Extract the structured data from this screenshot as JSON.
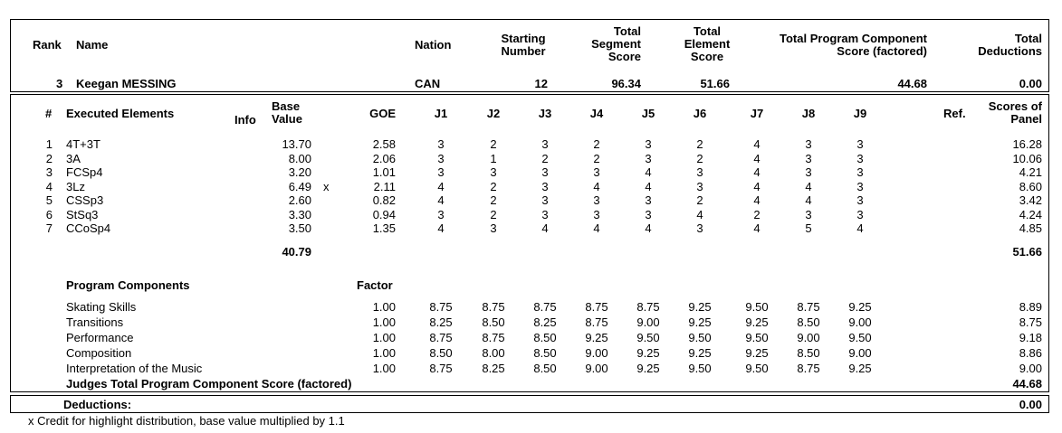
{
  "header": {
    "rank_label": "Rank",
    "name_label": "Name",
    "nation_label": "Nation",
    "starting_number_label": [
      "Starting",
      "Number"
    ],
    "total_segment_label": [
      "Total",
      "Segment",
      "Score"
    ],
    "total_element_label": [
      "Total",
      "Element",
      "Score"
    ],
    "total_pcs_label": [
      "Total Program Component",
      "Score (factored)"
    ],
    "total_deductions_label": [
      "Total",
      "Deductions"
    ]
  },
  "skater": {
    "rank": "3",
    "name": "Keegan MESSING",
    "nation": "CAN",
    "starting_number": "12",
    "total_segment_score": "96.34",
    "total_element_score": "51.66",
    "total_pcs": "44.68",
    "total_deductions": "0.00"
  },
  "elements_header": {
    "num": "#",
    "executed_elements": "Executed Elements",
    "info": "Info",
    "base_value": [
      "Base",
      "Value"
    ],
    "goe": "GOE",
    "judges": [
      "J1",
      "J2",
      "J3",
      "J4",
      "J5",
      "J6",
      "J7",
      "J8",
      "J9"
    ],
    "ref": "Ref.",
    "scores_of_panel": [
      "Scores of",
      "Panel"
    ]
  },
  "elements": [
    {
      "num": "1",
      "name": "4T+3T",
      "info": "",
      "base": "13.70",
      "goe": "2.58",
      "j": [
        "3",
        "2",
        "3",
        "2",
        "3",
        "2",
        "4",
        "3",
        "3"
      ],
      "score": "16.28"
    },
    {
      "num": "2",
      "name": "3A",
      "info": "",
      "base": "8.00",
      "goe": "2.06",
      "j": [
        "3",
        "1",
        "2",
        "2",
        "3",
        "2",
        "4",
        "3",
        "3"
      ],
      "score": "10.06"
    },
    {
      "num": "3",
      "name": "FCSp4",
      "info": "",
      "base": "3.20",
      "goe": "1.01",
      "j": [
        "3",
        "3",
        "3",
        "3",
        "4",
        "3",
        "4",
        "3",
        "3"
      ],
      "score": "4.21"
    },
    {
      "num": "4",
      "name": "3Lz",
      "info": "x",
      "base": "6.49",
      "goe": "2.11",
      "j": [
        "4",
        "2",
        "3",
        "4",
        "4",
        "3",
        "4",
        "4",
        "3"
      ],
      "score": "8.60"
    },
    {
      "num": "5",
      "name": "CSSp3",
      "info": "",
      "base": "2.60",
      "goe": "0.82",
      "j": [
        "4",
        "2",
        "3",
        "3",
        "3",
        "2",
        "4",
        "4",
        "3"
      ],
      "score": "3.42"
    },
    {
      "num": "6",
      "name": "StSq3",
      "info": "",
      "base": "3.30",
      "goe": "0.94",
      "j": [
        "3",
        "2",
        "3",
        "3",
        "3",
        "4",
        "2",
        "3",
        "3"
      ],
      "score": "4.24"
    },
    {
      "num": "7",
      "name": "CCoSp4",
      "info": "",
      "base": "3.50",
      "goe": "1.35",
      "j": [
        "4",
        "3",
        "4",
        "4",
        "4",
        "3",
        "4",
        "5",
        "4"
      ],
      "score": "4.85"
    }
  ],
  "elements_total_base": "40.79",
  "elements_total_score": "51.66",
  "program_components_label": "Program Components",
  "factor_label": "Factor",
  "components": [
    {
      "name": "Skating Skills",
      "factor": "1.00",
      "j": [
        "8.75",
        "8.75",
        "8.75",
        "8.75",
        "8.75",
        "9.25",
        "9.50",
        "8.75",
        "9.25"
      ],
      "score": "8.89"
    },
    {
      "name": "Transitions",
      "factor": "1.00",
      "j": [
        "8.25",
        "8.50",
        "8.25",
        "8.75",
        "9.00",
        "9.25",
        "9.25",
        "8.50",
        "9.00"
      ],
      "score": "8.75"
    },
    {
      "name": "Performance",
      "factor": "1.00",
      "j": [
        "8.75",
        "8.75",
        "8.50",
        "9.25",
        "9.50",
        "9.50",
        "9.50",
        "9.00",
        "9.50"
      ],
      "score": "9.18"
    },
    {
      "name": "Composition",
      "factor": "1.00",
      "j": [
        "8.50",
        "8.00",
        "8.50",
        "9.00",
        "9.25",
        "9.25",
        "9.25",
        "8.50",
        "9.00"
      ],
      "score": "8.86"
    },
    {
      "name": "Interpretation of the Music",
      "factor": "1.00",
      "j": [
        "8.75",
        "8.25",
        "8.50",
        "9.00",
        "9.25",
        "9.50",
        "9.50",
        "8.75",
        "9.25"
      ],
      "score": "9.00"
    }
  ],
  "judges_total_label": "Judges Total Program Component Score (factored)",
  "judges_total_value": "44.68",
  "deductions_label": "Deductions:",
  "deductions_value": "0.00",
  "footnote": "x Credit for highlight distribution, base value multiplied by 1.1"
}
